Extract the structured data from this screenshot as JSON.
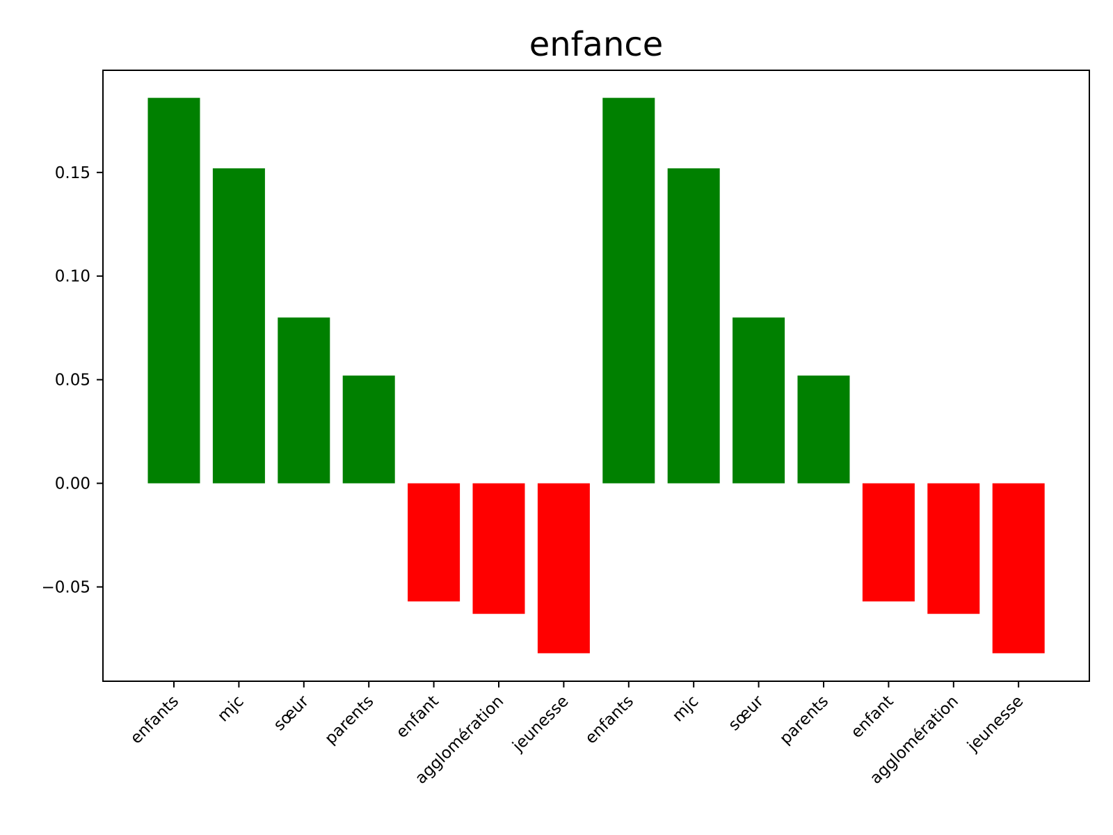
{
  "chart_data": {
    "type": "bar",
    "title": "enfance",
    "xlabel": "",
    "ylabel": "",
    "categories": [
      "enfants",
      "mjc",
      "sœur",
      "parents",
      "enfant",
      "agglomération",
      "jeunesse",
      "enfants",
      "mjc",
      "sœur",
      "parents",
      "enfant",
      "agglomération",
      "jeunesse"
    ],
    "values": [
      0.186,
      0.152,
      0.08,
      0.052,
      -0.057,
      -0.063,
      -0.082,
      0.186,
      0.152,
      0.08,
      0.052,
      -0.057,
      -0.063,
      -0.082
    ],
    "ylim": [
      -0.0955,
      0.1993
    ],
    "yticks": [
      -0.05,
      0.0,
      0.05,
      0.1,
      0.15
    ],
    "ytick_labels": [
      "−0.05",
      "0.00",
      "0.05",
      "0.10",
      "0.15"
    ],
    "positive_color": "#008000",
    "negative_color": "#ff0000",
    "grid": false,
    "legend": "none"
  }
}
